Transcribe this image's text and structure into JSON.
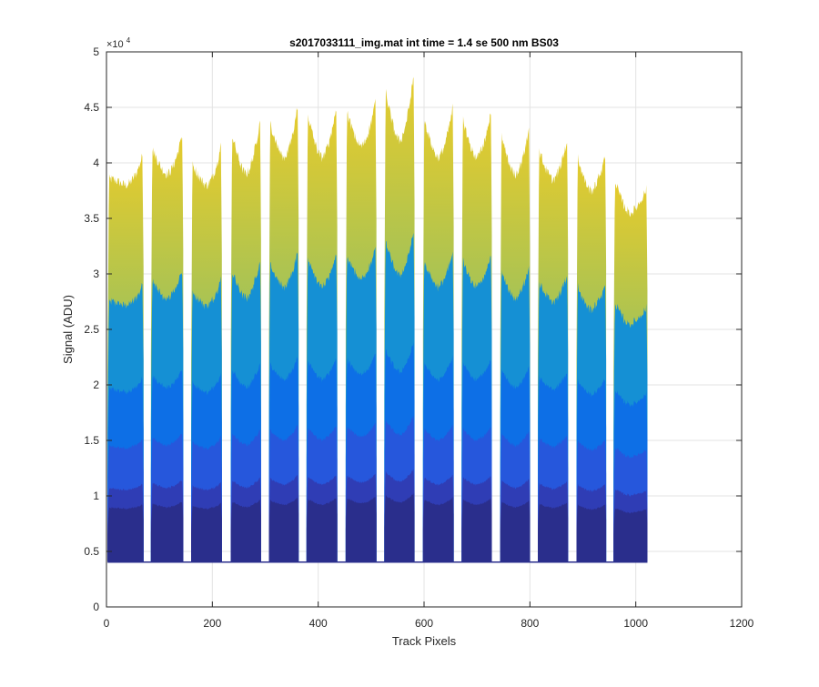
{
  "chart_data": {
    "type": "area",
    "title": "s2017033111_img.mat int time = 1.4 se  500 nm BS03",
    "xlabel": "Track Pixels",
    "ylabel": "Signal (ADU)",
    "exponent_label": "×10",
    "exponent_power": "4",
    "xlim": [
      0,
      1200
    ],
    "ylim": [
      0,
      50000
    ],
    "xticks": [
      0,
      200,
      400,
      600,
      800,
      1000,
      1200
    ],
    "xtick_labels": [
      "0",
      "200",
      "400",
      "600",
      "800",
      "1000",
      "1200"
    ],
    "yticks": [
      0,
      5000,
      10000,
      15000,
      20000,
      25000,
      30000,
      35000,
      40000,
      45000,
      50000
    ],
    "ytick_labels": [
      "0",
      "0.5",
      "1",
      "1.5",
      "2",
      "2.5",
      "3",
      "3.5",
      "4",
      "4.5",
      "5"
    ],
    "grid": true,
    "baseline": 4100,
    "segments": [
      {
        "x_start": 2,
        "x_end": 70,
        "left_peak": 38500,
        "right_peak": 41000,
        "dip": 38000
      },
      {
        "x_start": 84,
        "x_end": 145,
        "left_peak": 41500,
        "right_peak": 43000,
        "dip": 39000
      },
      {
        "x_start": 160,
        "x_end": 218,
        "left_peak": 40000,
        "right_peak": 42000,
        "dip": 38000
      },
      {
        "x_start": 235,
        "x_end": 292,
        "left_peak": 43000,
        "right_peak": 44500,
        "dip": 39000
      },
      {
        "x_start": 307,
        "x_end": 363,
        "left_peak": 44000,
        "right_peak": 45800,
        "dip": 40500
      },
      {
        "x_start": 378,
        "x_end": 436,
        "left_peak": 45000,
        "right_peak": 45500,
        "dip": 40500
      },
      {
        "x_start": 452,
        "x_end": 510,
        "left_peak": 45000,
        "right_peak": 46000,
        "dip": 41500
      },
      {
        "x_start": 525,
        "x_end": 582,
        "left_peak": 47000,
        "right_peak": 48500,
        "dip": 42000
      },
      {
        "x_start": 598,
        "x_end": 656,
        "left_peak": 44500,
        "right_peak": 45500,
        "dip": 40500
      },
      {
        "x_start": 671,
        "x_end": 728,
        "left_peak": 44500,
        "right_peak": 45000,
        "dip": 40500
      },
      {
        "x_start": 744,
        "x_end": 800,
        "left_peak": 43000,
        "right_peak": 43500,
        "dip": 39000
      },
      {
        "x_start": 815,
        "x_end": 872,
        "left_peak": 41500,
        "right_peak": 42500,
        "dip": 38500
      },
      {
        "x_start": 888,
        "x_end": 944,
        "left_peak": 41000,
        "right_peak": 41000,
        "dip": 37500
      },
      {
        "x_start": 958,
        "x_end": 1022,
        "left_peak": 39000,
        "right_peak": 37800,
        "dip": 35500
      }
    ],
    "layer_fractions": [
      0.14,
      0.19,
      0.3,
      0.45,
      0.68,
      1.0
    ],
    "layer_colors": [
      "#2a2e8c",
      "#2f3db5",
      "#2657dc",
      "#0d6fe6",
      "#1590d4",
      "#d8c234"
    ]
  }
}
